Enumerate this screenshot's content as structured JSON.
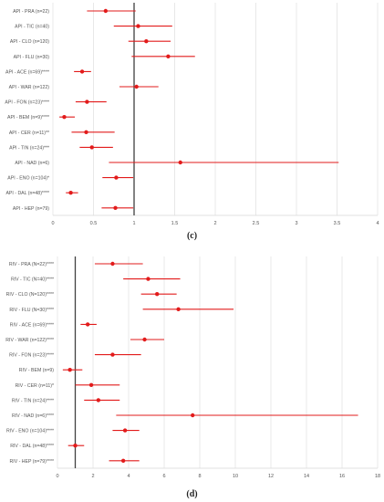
{
  "colors": {
    "series": "#e21b1b",
    "grid": "#d9d9d9",
    "axis": "#404040",
    "ref": "#404040",
    "text": "#555555"
  },
  "chart_data": [
    {
      "type": "scatter",
      "caption": "(c)",
      "title": "",
      "xlabel": "",
      "ylabel": "",
      "xlim": [
        0,
        4
      ],
      "xticks": [
        "0",
        "0.5",
        "1",
        "1.5",
        "2",
        "2.5",
        "3",
        "3.5",
        "4"
      ],
      "reference_line": 1,
      "grid": "vertical",
      "categories": [
        "API - PRA (n=22)",
        "API - TIC (n=40)",
        "API - CLO (n=120)",
        "API - FLU (n=30)",
        "API - ACE (n=69)****",
        "API - WAR (n=122)",
        "API - FON (n=23)****",
        "API - BEM (n=9)****",
        "API - CER (n=11)**",
        "API - TIN (n=24)***",
        "API - NAD (n=6)",
        "API - ENO (n=104)*",
        "API - DAL (n=48)****",
        "API - HEP (n=79)"
      ],
      "estimate": [
        0.65,
        1.05,
        1.15,
        1.42,
        0.36,
        1.03,
        0.42,
        0.14,
        0.41,
        0.48,
        1.57,
        0.78,
        0.22,
        0.77
      ],
      "ci_low": [
        0.42,
        0.75,
        0.93,
        0.97,
        0.26,
        0.82,
        0.28,
        0.08,
        0.23,
        0.33,
        0.69,
        0.61,
        0.16,
        0.6
      ],
      "ci_high": [
        1.02,
        1.47,
        1.45,
        1.75,
        0.47,
        1.3,
        0.66,
        0.27,
        0.76,
        0.74,
        3.52,
        0.99,
        0.31,
        0.99
      ]
    },
    {
      "type": "scatter",
      "caption": "(d)",
      "title": "",
      "xlabel": "",
      "ylabel": "",
      "xlim": [
        0,
        18
      ],
      "xticks": [
        "0",
        "2",
        "4",
        "6",
        "8",
        "10",
        "12",
        "14",
        "16",
        "18"
      ],
      "reference_line": 1,
      "grid": "vertical",
      "categories": [
        "RIV - PRA (N=22)****",
        "RIV - TIC (N=40)****",
        "RIV - CLO (N=120)****",
        "RIV - FLU (N=30)****",
        "RIV - ACE (n=69)****",
        "RIV - WAR (n=122)****",
        "RIV - FON (n=23)****",
        "RIV - BEM (n=9)",
        "RIV - CER (n=11)*",
        "RIV - TIN (n=24)****",
        "RIV - NAD (n=6)****",
        "RIV - ENO (n=104)****",
        "RIV - DAL (n=48)****",
        "RIV - HEP (n=79)****"
      ],
      "estimate": [
        3.1,
        5.1,
        5.6,
        6.8,
        1.7,
        4.9,
        3.1,
        0.7,
        1.9,
        2.3,
        7.6,
        3.8,
        1.0,
        3.7
      ],
      "ci_low": [
        2.1,
        3.7,
        4.7,
        4.8,
        1.3,
        4.1,
        2.1,
        0.3,
        1.0,
        1.5,
        3.3,
        3.1,
        0.6,
        2.9
      ],
      "ci_high": [
        4.8,
        6.9,
        6.7,
        9.9,
        2.2,
        6.0,
        4.7,
        1.4,
        3.5,
        3.5,
        16.9,
        4.6,
        1.5,
        4.6
      ]
    }
  ]
}
